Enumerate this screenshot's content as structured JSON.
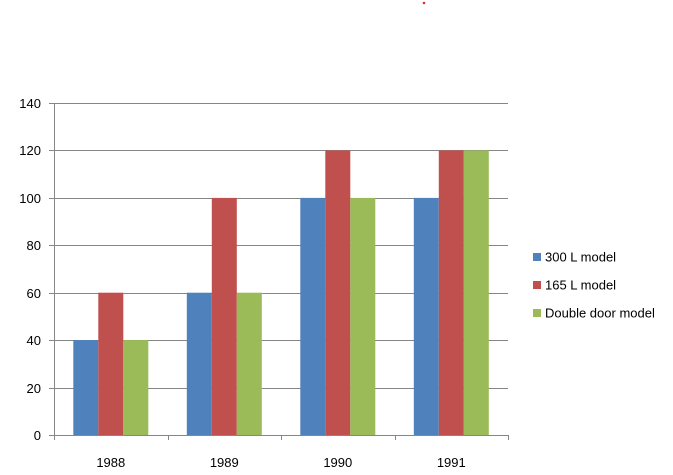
{
  "chart_data": {
    "type": "bar",
    "categories": [
      "1988",
      "1989",
      "1990",
      "1991"
    ],
    "series": [
      {
        "name": "300 L model",
        "color": "#4F81BD",
        "values": [
          40,
          60,
          100,
          100
        ]
      },
      {
        "name": "165 L model",
        "color": "#C0504D",
        "values": [
          60,
          100,
          120,
          120
        ]
      },
      {
        "name": "Double door model",
        "color": "#9BBB59",
        "values": [
          40,
          60,
          100,
          120
        ]
      }
    ],
    "ylim": [
      0,
      140
    ],
    "yticks": [
      0,
      20,
      40,
      60,
      80,
      100,
      120,
      140
    ],
    "title": "",
    "xlabel": "",
    "ylabel": "",
    "grid": true,
    "legend_position": "right"
  }
}
